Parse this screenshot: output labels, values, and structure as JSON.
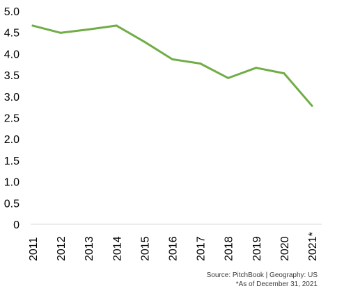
{
  "chart_data": {
    "type": "line",
    "categories": [
      "2011",
      "2012",
      "2013",
      "2014",
      "2015",
      "2016",
      "2017",
      "2018",
      "2019",
      "2020",
      "2021*"
    ],
    "series": [
      {
        "values": [
          4.66,
          4.49,
          4.57,
          4.66,
          4.28,
          3.87,
          3.77,
          3.43,
          3.67,
          3.54,
          2.78
        ]
      }
    ],
    "y_ticks": [
      "0",
      "0.5",
      "1.0",
      "1.5",
      "2.0",
      "2.5",
      "3.0",
      "3.5",
      "4.0",
      "4.5",
      "5.0"
    ],
    "ylim": [
      0,
      5
    ],
    "grid": false,
    "line_color": "#70ad47",
    "axis_color": "#d9d9d9",
    "title": "",
    "xlabel": "",
    "ylabel": ""
  },
  "source_line": "Source: PitchBook | Geography: US",
  "note_line": "*As of December 31, 2021"
}
